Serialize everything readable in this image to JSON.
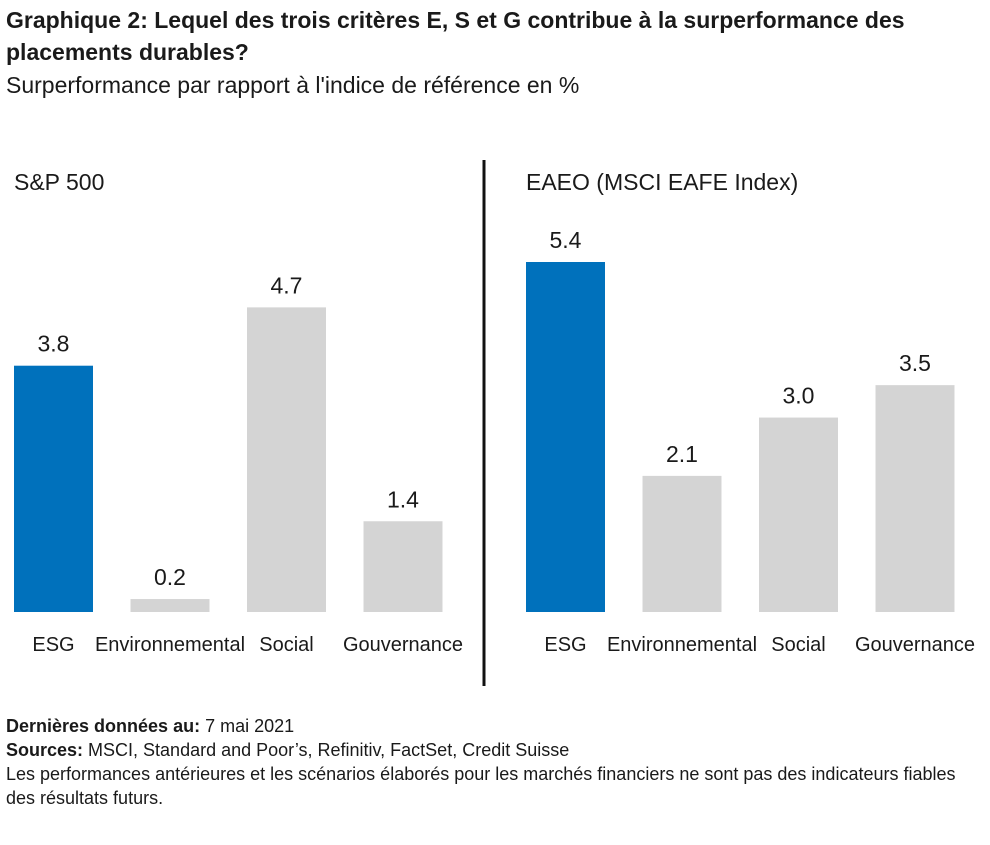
{
  "header": {
    "title": "Graphique 2: Lequel des trois critères E, S et G contribue à la surperformance des placements durables?",
    "subtitle": "Surperformance par rapport à l'indice de référence en %"
  },
  "colors": {
    "highlight": "#0071bc",
    "default": "#d4d4d4",
    "divider": "#111111"
  },
  "chart_data": [
    {
      "type": "bar",
      "title": "S&P 500",
      "categories": [
        "ESG",
        "Environnemental",
        "Social",
        "Gouvernance"
      ],
      "values": [
        3.8,
        0.2,
        4.7,
        1.4
      ],
      "value_labels": [
        "3.8",
        "0.2",
        "4.7",
        "1.4"
      ],
      "highlight_index": 0,
      "ylim": [
        0,
        5.4
      ],
      "grid": false
    },
    {
      "type": "bar",
      "title": "EAEO (MSCI EAFE Index)",
      "categories": [
        "ESG",
        "Environnemental",
        "Social",
        "Gouvernance"
      ],
      "values": [
        5.4,
        2.1,
        3.0,
        3.5
      ],
      "value_labels": [
        "5.4",
        "2.1",
        "3.0",
        "3.5"
      ],
      "highlight_index": 0,
      "ylim": [
        0,
        5.4
      ],
      "grid": false
    }
  ],
  "footer": {
    "date_label": "Dernières données au:",
    "date_value": " 7 mai 2021",
    "sources_label": "Sources:",
    "sources_value": " MSCI, Standard and Poor’s, Refinitiv, FactSet, Credit Suisse",
    "disclaimer": "Les performances antérieures et les scénarios élaborés pour les marchés financiers ne sont pas des indicateurs fiables des résultats futurs."
  }
}
